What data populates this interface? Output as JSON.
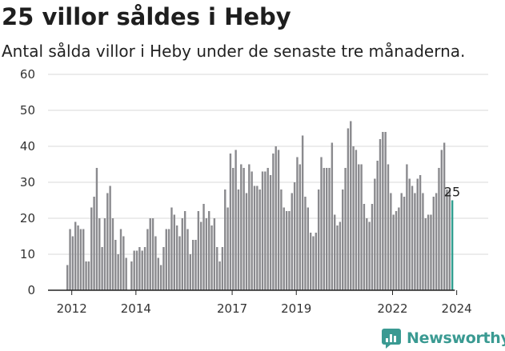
{
  "header": {
    "title": "25 villor såldes i Heby",
    "subtitle": "Antal sålda villor i Heby under de senaste tre månaderna."
  },
  "brand": {
    "name": "Newsworthy",
    "icon": "newsworthy-logo-icon",
    "color": "#3a9a92"
  },
  "colors": {
    "bar": "#8a8a8e",
    "highlight": "#2f9e8f",
    "grid": "#d9d9d9",
    "axis": "#222222"
  },
  "chart_data": {
    "type": "bar",
    "title": "25 villor såldes i Heby",
    "subtitle": "Antal sålda villor i Heby under de senaste tre månaderna.",
    "xlabel": "",
    "ylabel": "",
    "ylim": [
      0,
      60
    ],
    "yticks": [
      0,
      10,
      20,
      30,
      40,
      50,
      60
    ],
    "xticks": [
      "2012",
      "2014",
      "2017",
      "2019",
      "2022",
      "2024"
    ],
    "x_start": "2011-11",
    "grid": "horizontal",
    "annotation": {
      "label": "25",
      "index": 166
    },
    "values": [
      7,
      17,
      15,
      19,
      18,
      17,
      17,
      8,
      8,
      23,
      26,
      34,
      20,
      12,
      20,
      27,
      29,
      20,
      14,
      10,
      17,
      15,
      9,
      0,
      8,
      11,
      11,
      12,
      11,
      12,
      17,
      20,
      20,
      15,
      9,
      7,
      12,
      17,
      17,
      23,
      21,
      18,
      15,
      20,
      22,
      17,
      10,
      14,
      14,
      22,
      19,
      24,
      20,
      22,
      18,
      20,
      12,
      8,
      12,
      28,
      23,
      38,
      34,
      39,
      28,
      35,
      34,
      27,
      35,
      33,
      29,
      29,
      28,
      33,
      33,
      34,
      32,
      38,
      40,
      39,
      28,
      23,
      22,
      22,
      27,
      30,
      37,
      35,
      43,
      26,
      23,
      16,
      15,
      16,
      28,
      37,
      34,
      34,
      34,
      41,
      21,
      18,
      19,
      28,
      34,
      45,
      47,
      40,
      39,
      35,
      35,
      24,
      20,
      19,
      24,
      31,
      36,
      42,
      44,
      44,
      35,
      27,
      21,
      22,
      23,
      27,
      26,
      35,
      31,
      29,
      27,
      31,
      32,
      27,
      20,
      21,
      21,
      26,
      27,
      34,
      39,
      41,
      28,
      28,
      25
    ],
    "highlight_index": 144
  }
}
